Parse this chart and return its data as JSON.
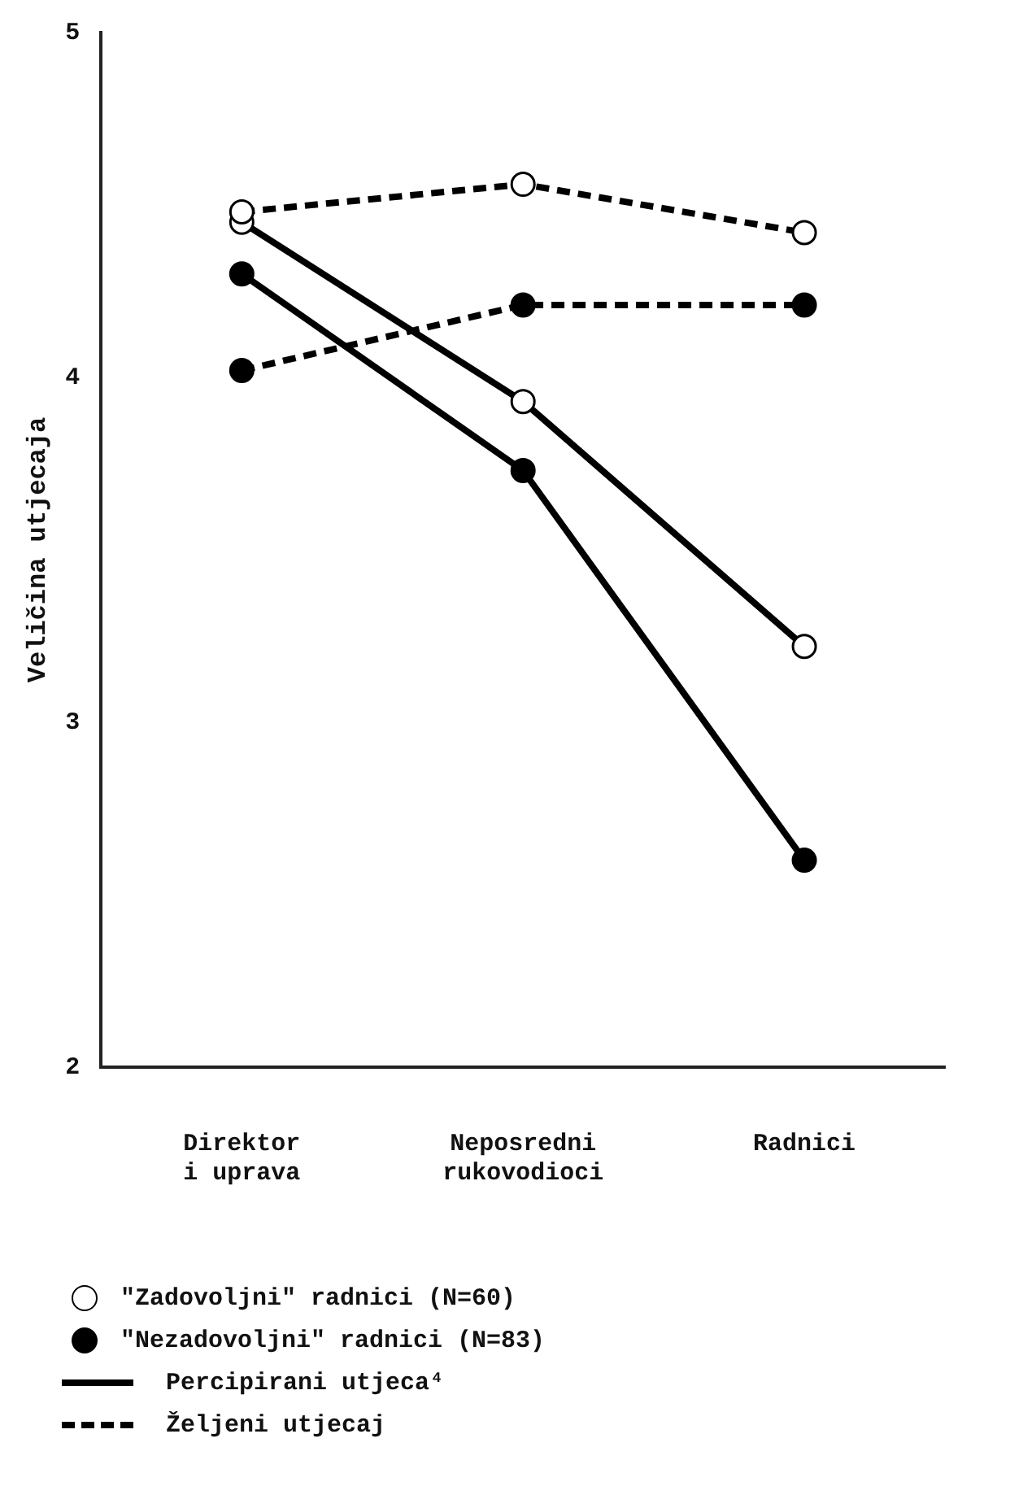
{
  "chart_data": {
    "type": "line",
    "ylabel": "Veličina utjecaja",
    "categories": [
      "Direktor i uprava",
      "Neposredni rukovodioci",
      "Radnici"
    ],
    "ylim": [
      2,
      5
    ],
    "yticks": [
      2,
      3,
      4,
      5
    ],
    "grid": false,
    "legend": false,
    "marker": "circle",
    "series": [
      {
        "color": "#000000",
        "colors": [
          "#ffffff",
          "#ffffff",
          "#ffffff"
        ],
        "line_style": "dashed",
        "values": [
          4.48,
          4.56,
          4.42
        ]
      },
      {
        "color": "#000000",
        "colors": [
          "#ffffff",
          "#ffffff",
          "#ffffff"
        ],
        "line_style": "solid",
        "values": [
          4.45,
          3.93,
          3.22
        ]
      },
      {
        "color": "#000000",
        "colors": [
          "#000000",
          "#000000",
          "#000000"
        ],
        "line_style": "dashed",
        "values": [
          4.02,
          4.21,
          4.21
        ]
      },
      {
        "color": "#000000",
        "colors": [
          "#000000",
          "#000000",
          "#000000"
        ],
        "line_style": "solid",
        "values": [
          4.3,
          3.73,
          2.6
        ]
      }
    ],
    "annotations": [
      "\"Zadovoljni\" radnici (N=60)",
      "\"Nezadovoljni\" radnici (N=83)",
      "Percipirani utjeca⁴",
      "Željeni utjecaj"
    ]
  }
}
